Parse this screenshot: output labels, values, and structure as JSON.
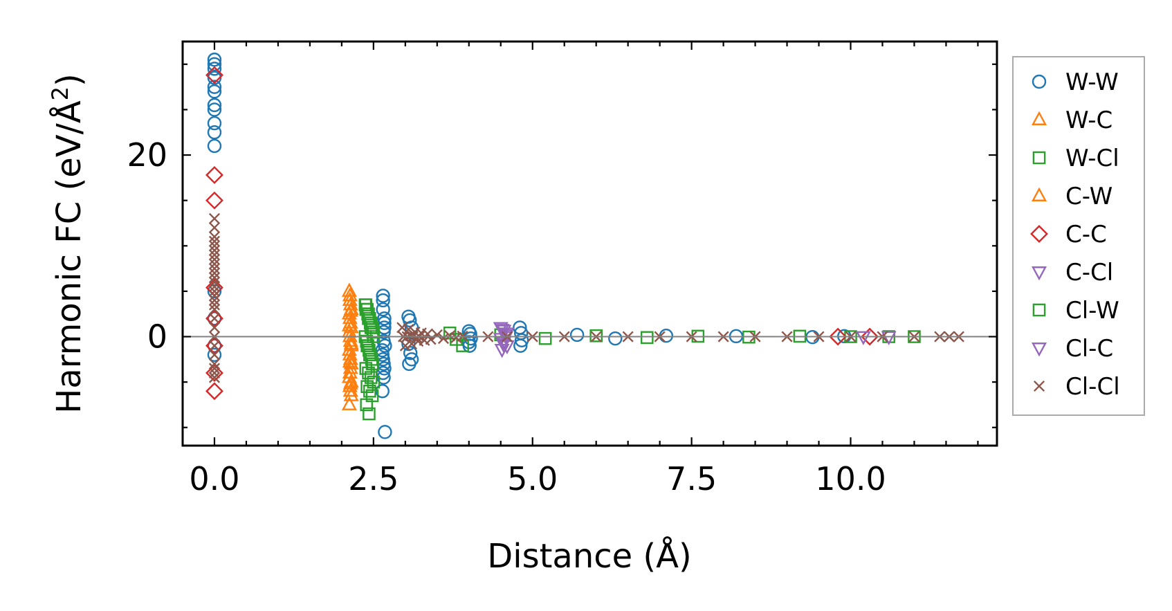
{
  "chart_data": {
    "type": "scatter",
    "title": "",
    "xlabel": "Distance (Å)",
    "ylabel_main": "Harmonic FC (eV/Å",
    "ylabel_sup": "2",
    "ylabel_close": ")",
    "xlim": [
      -0.5,
      12.3
    ],
    "ylim": [
      -12,
      32.5
    ],
    "xticks": [
      0,
      2.5,
      5,
      7.5,
      10
    ],
    "xtick_labels": [
      "0.0",
      "2.5",
      "5.0",
      "7.5",
      "10.0"
    ],
    "yticks": [
      0,
      20
    ],
    "ytick_labels": [
      "0",
      "20"
    ],
    "x_minor_step": 0.5,
    "y_minor_step": 5,
    "zero_line": true,
    "legend_position": "outside-right",
    "series": [
      {
        "name": "W-W",
        "marker": "circle",
        "color": "#1f77b4",
        "x": [
          0,
          0,
          0,
          0,
          0,
          0,
          0,
          0,
          0,
          0,
          0,
          0,
          0,
          0,
          0,
          2.65,
          2.65,
          2.65,
          2.67,
          2.67,
          2.67,
          2.66,
          2.66,
          2.68,
          2.64,
          2.64,
          2.65,
          2.66,
          2.67,
          2.65,
          2.66,
          2.64,
          2.68,
          3.05,
          3.07,
          3.1,
          3.05,
          3.08,
          3.1,
          3.06,
          4.0,
          4.02,
          4.03,
          4.0,
          4.01,
          4.8,
          4.82,
          4.83,
          4.81,
          5.7,
          6.3,
          7.1,
          8.2,
          9.4,
          9.9
        ],
        "y": [
          30.5,
          30,
          29.5,
          28.5,
          27.5,
          27,
          25.5,
          25,
          23.5,
          22.5,
          21,
          5,
          2,
          -1,
          -2,
          4.5,
          4,
          3,
          2,
          1.5,
          1,
          0.5,
          -0.5,
          -1,
          -1.5,
          -2,
          -2.5,
          -3,
          -3.5,
          -4,
          -4.5,
          -6,
          -10.5,
          2.2,
          1.8,
          1,
          -0.8,
          -1.8,
          -2.5,
          -3,
          0.6,
          0.3,
          -0.2,
          -0.6,
          -1,
          1,
          0.4,
          -0.4,
          -1,
          0.2,
          -0.2,
          0.1,
          0.05,
          -0.05,
          0.05
        ]
      },
      {
        "name": "W-C",
        "marker": "triangle-up",
        "color": "#ff7f0e",
        "x": [
          2.12,
          2.13,
          2.14,
          2.15,
          2.12,
          2.13,
          2.14,
          2.15,
          2.12,
          2.13,
          2.14,
          2.15,
          2.12,
          2.13,
          2.14,
          2.15,
          2.14,
          2.13,
          2.12,
          2.15,
          2.13,
          2.14,
          2.15,
          2.12
        ],
        "y": [
          5,
          4,
          3.5,
          3,
          2.5,
          2,
          1.5,
          1,
          0.5,
          0,
          -0.5,
          -1,
          -1.5,
          -2,
          -2.5,
          -3,
          -3.5,
          -4,
          -4.5,
          -5,
          -5.5,
          -6,
          -6.5,
          -7.5
        ]
      },
      {
        "name": "W-Cl",
        "marker": "square",
        "color": "#2ca02c",
        "x": [
          2.37,
          2.38,
          2.39,
          2.4,
          2.41,
          2.42,
          2.43,
          2.44,
          2.45,
          2.46,
          2.47,
          2.48,
          2.49,
          2.5,
          2.37,
          2.39,
          2.41,
          2.43,
          2.45,
          2.47,
          2.49,
          2.38,
          2.42,
          2.46,
          2.5,
          2.4,
          2.44,
          2.48,
          2.39,
          2.43,
          3.7,
          3.8,
          3.9,
          4.5,
          5.2,
          6.0,
          6.8,
          7.6,
          8.4,
          9.2,
          10.0,
          10.6,
          11.0
        ],
        "y": [
          3.5,
          3.5,
          3,
          3,
          2.5,
          2.5,
          2,
          2,
          1.5,
          1.5,
          1,
          1,
          0.5,
          0.5,
          0,
          -0.5,
          -1,
          -1.5,
          -2,
          -2.5,
          -3,
          -3.5,
          -4,
          -4.5,
          -5,
          -5.5,
          -6,
          -6.5,
          -7.5,
          -8.5,
          0.4,
          -0.3,
          -1,
          0.2,
          -0.2,
          0.1,
          -0.1,
          0.05,
          -0.05,
          0.05,
          0,
          0,
          0
        ]
      },
      {
        "name": "C-W",
        "marker": "triangle-up",
        "color": "#ff7f0e",
        "x": [
          2.13,
          2.14,
          2.12,
          2.15,
          2.13,
          2.14
        ],
        "y": [
          4.5,
          2.8,
          1.2,
          -0.8,
          -2.8,
          -5.2
        ]
      },
      {
        "name": "C-C",
        "marker": "diamond",
        "color": "#d62728",
        "x": [
          0,
          0,
          0,
          0,
          0,
          0,
          0,
          0,
          9.8,
          10.3
        ],
        "y": [
          28.8,
          17.8,
          15,
          5.4,
          2,
          -1,
          -4,
          -6,
          0,
          0
        ]
      },
      {
        "name": "C-Cl",
        "marker": "triangle-down",
        "color": "#9467bd",
        "x": [
          4.5,
          4.55,
          4.6,
          4.5,
          4.55,
          4.6,
          4.52,
          4.58,
          10.2,
          10.6
        ],
        "y": [
          1,
          0.7,
          0.4,
          -0.2,
          -0.6,
          -1,
          -1.4,
          0.2,
          0,
          0
        ]
      },
      {
        "name": "Cl-W",
        "marker": "square",
        "color": "#2ca02c",
        "x": [
          2.38,
          2.42,
          2.46,
          2.5,
          2.4,
          2.44,
          2.48
        ],
        "y": [
          3,
          2,
          1,
          0,
          -1,
          -2,
          -3
        ]
      },
      {
        "name": "Cl-C",
        "marker": "triangle-down",
        "color": "#9467bd",
        "x": [
          4.52,
          4.58,
          4.54
        ],
        "y": [
          0.8,
          0,
          -0.8
        ]
      },
      {
        "name": "Cl-Cl",
        "marker": "x",
        "color": "#8c564b",
        "x": [
          0,
          0,
          0,
          0,
          0,
          0,
          0,
          0,
          0,
          0,
          0,
          0,
          0,
          0,
          0,
          0,
          0,
          0,
          0,
          0,
          0,
          0,
          0,
          0,
          0,
          0,
          0,
          0,
          2.95,
          3.0,
          3.05,
          3.1,
          3.15,
          3.2,
          3.25,
          3.3,
          3.35,
          3.4,
          3.5,
          3.6,
          3.7,
          3.8,
          3.9,
          2.97,
          3.03,
          3.08,
          3.12,
          3.18,
          3.22,
          4.3,
          4.6,
          5.0,
          5.5,
          6.0,
          6.5,
          7.0,
          7.5,
          8.0,
          8.5,
          9.0,
          9.5,
          10.0,
          10.5,
          11.0,
          11.4,
          11.55,
          11.7
        ],
        "y": [
          13,
          12,
          11,
          10.5,
          10,
          9.5,
          9,
          8.5,
          8,
          7.5,
          7,
          6.5,
          6,
          5.5,
          5,
          4.5,
          4,
          3.5,
          3,
          2,
          1,
          0,
          -1,
          -2,
          -3,
          -3.5,
          -4,
          -4.5,
          1,
          -1,
          0.8,
          -0.8,
          0.5,
          -0.5,
          0.4,
          -0.4,
          0.3,
          -0.3,
          0.2,
          -0.2,
          0.1,
          -0.1,
          0.05,
          0,
          0,
          0.1,
          0,
          -0.1,
          0,
          0,
          0,
          0,
          0,
          0,
          0,
          0,
          0,
          0,
          0,
          0,
          0,
          0,
          0,
          0,
          0,
          0,
          0
        ]
      }
    ]
  }
}
